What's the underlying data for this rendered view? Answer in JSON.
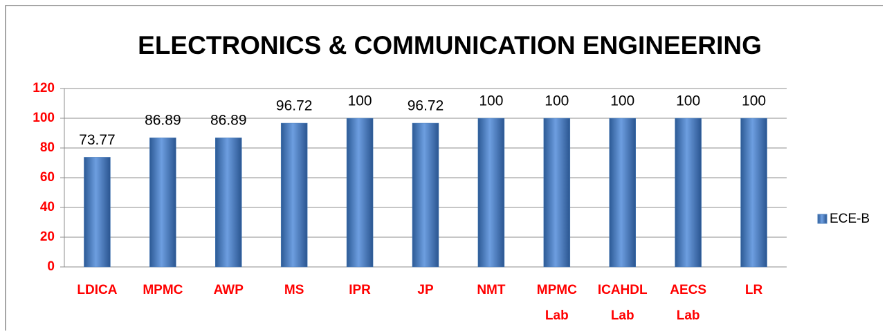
{
  "chart_data": {
    "type": "bar",
    "title": "ELECTRONICS & COMMUNICATION ENGINEERING",
    "categories": [
      "LDICA",
      "MPMC",
      "AWP",
      "MS",
      "IPR",
      "JP",
      "NMT",
      "MPMC Lab",
      "ICAHDL Lab",
      "AECS Lab",
      "LR"
    ],
    "series": [
      {
        "name": "ECE-B",
        "color": "#4a7ebb",
        "values": [
          73.77,
          86.89,
          86.89,
          96.72,
          100,
          96.72,
          100,
          100,
          100,
          100,
          100
        ]
      }
    ],
    "ylim": [
      0,
      120
    ],
    "yticks": [
      0,
      20,
      40,
      60,
      80,
      100,
      120
    ],
    "grid": true,
    "legend": "right"
  }
}
